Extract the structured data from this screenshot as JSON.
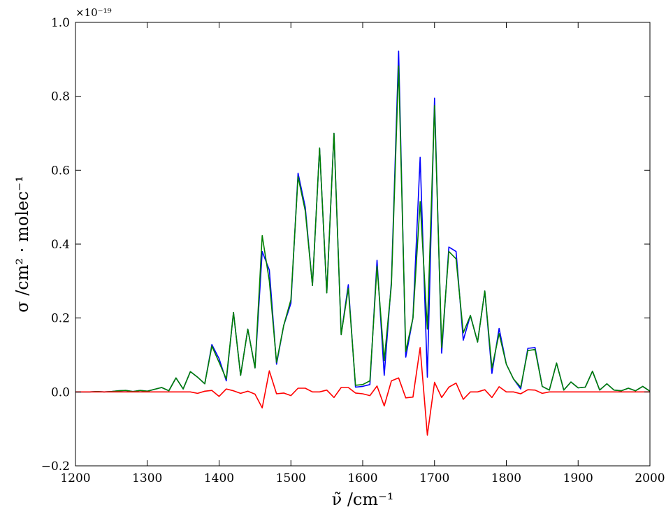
{
  "chart_data": {
    "type": "line",
    "xlabel": "ν̃ /cm⁻¹",
    "ylabel": "σ /cm² · molec⁻¹",
    "y_scale_label": "×10⁻¹⁹",
    "xlim": [
      1200,
      2000
    ],
    "ylim": [
      -0.2,
      1.0
    ],
    "grid": false,
    "x_ticks": [
      1200,
      1300,
      1400,
      1500,
      1600,
      1700,
      1800,
      1900,
      2000
    ],
    "y_ticks": [
      -0.2,
      0.0,
      0.2,
      0.4,
      0.6,
      0.8,
      1.0
    ],
    "x_tick_labels": [
      "1200",
      "1300",
      "1400",
      "1500",
      "1600",
      "1700",
      "1800",
      "1900",
      "2000"
    ],
    "y_tick_labels": [
      "−0.2",
      "0.0",
      "0.2",
      "0.4",
      "0.6",
      "0.8",
      "1.0"
    ],
    "x": [
      1200,
      1210,
      1220,
      1230,
      1240,
      1250,
      1260,
      1270,
      1280,
      1290,
      1300,
      1310,
      1320,
      1330,
      1340,
      1350,
      1360,
      1370,
      1380,
      1390,
      1400,
      1410,
      1420,
      1430,
      1440,
      1450,
      1460,
      1470,
      1480,
      1490,
      1500,
      1510,
      1520,
      1530,
      1540,
      1550,
      1560,
      1570,
      1580,
      1590,
      1600,
      1610,
      1620,
      1630,
      1640,
      1650,
      1660,
      1670,
      1680,
      1690,
      1700,
      1710,
      1720,
      1730,
      1740,
      1750,
      1760,
      1770,
      1780,
      1790,
      1800,
      1810,
      1820,
      1830,
      1840,
      1850,
      1860,
      1870,
      1880,
      1890,
      1900,
      1910,
      1920,
      1930,
      1940,
      1950,
      1960,
      1970,
      1980,
      1990,
      2000
    ],
    "series": [
      {
        "color": "#0000ff",
        "values": [
          0.0,
          0.0,
          0.0,
          0.001,
          0.0,
          0.001,
          0.003,
          0.004,
          0.001,
          0.004,
          0.002,
          0.007,
          0.012,
          0.003,
          0.038,
          0.008,
          0.055,
          0.04,
          0.022,
          0.128,
          0.09,
          0.03,
          0.215,
          0.045,
          0.17,
          0.065,
          0.38,
          0.33,
          0.075,
          0.18,
          0.24,
          0.592,
          0.5,
          0.288,
          0.66,
          0.268,
          0.7,
          0.155,
          0.29,
          0.013,
          0.015,
          0.02,
          0.356,
          0.045,
          0.3,
          0.922,
          0.094,
          0.2,
          0.635,
          0.04,
          0.795,
          0.105,
          0.392,
          0.38,
          0.14,
          0.207,
          0.135,
          0.273,
          0.05,
          0.172,
          0.075,
          0.035,
          0.008,
          0.118,
          0.12,
          0.015,
          0.005,
          0.078,
          0.005,
          0.027,
          0.011,
          0.013,
          0.056,
          0.005,
          0.022,
          0.005,
          0.003,
          0.01,
          0.003,
          0.015,
          0.002
        ]
      },
      {
        "color": "#008000",
        "values": [
          0.0,
          0.0,
          0.0,
          0.001,
          0.0,
          0.001,
          0.003,
          0.004,
          0.001,
          0.004,
          0.002,
          0.007,
          0.012,
          0.003,
          0.038,
          0.008,
          0.055,
          0.04,
          0.022,
          0.124,
          0.08,
          0.035,
          0.215,
          0.045,
          0.17,
          0.065,
          0.423,
          0.3,
          0.08,
          0.18,
          0.25,
          0.582,
          0.49,
          0.288,
          0.66,
          0.268,
          0.7,
          0.155,
          0.28,
          0.018,
          0.02,
          0.03,
          0.34,
          0.085,
          0.29,
          0.882,
          0.11,
          0.2,
          0.515,
          0.17,
          0.775,
          0.12,
          0.38,
          0.36,
          0.16,
          0.207,
          0.135,
          0.273,
          0.065,
          0.158,
          0.075,
          0.035,
          0.013,
          0.112,
          0.115,
          0.015,
          0.005,
          0.078,
          0.005,
          0.027,
          0.011,
          0.013,
          0.056,
          0.005,
          0.022,
          0.005,
          0.003,
          0.01,
          0.003,
          0.015,
          0.002
        ]
      },
      {
        "color": "#ff0000",
        "values": [
          0.0,
          0.0,
          0.0,
          0.0,
          0.0,
          0.0,
          0.0,
          0.0,
          0.0,
          0.0,
          0.0,
          0.0,
          0.0,
          0.0,
          0.0,
          0.0,
          0.0,
          -0.004,
          0.002,
          0.004,
          -0.012,
          0.008,
          0.003,
          -0.004,
          0.002,
          -0.006,
          -0.043,
          0.057,
          -0.005,
          -0.003,
          -0.01,
          0.01,
          0.01,
          0.0,
          0.0,
          0.005,
          -0.015,
          0.012,
          0.012,
          -0.003,
          -0.005,
          -0.01,
          0.016,
          -0.038,
          0.03,
          0.038,
          -0.016,
          -0.014,
          0.12,
          -0.117,
          0.026,
          -0.015,
          0.013,
          0.024,
          -0.02,
          0.0,
          0.0,
          0.006,
          -0.015,
          0.014,
          0.0,
          0.0,
          -0.005,
          0.006,
          0.005,
          -0.004,
          0.0,
          0.0,
          0.0,
          0.0,
          0.0,
          0.0,
          0.0,
          0.0,
          0.0,
          0.0,
          0.0,
          0.0,
          0.0,
          0.0,
          0.0
        ]
      }
    ]
  }
}
